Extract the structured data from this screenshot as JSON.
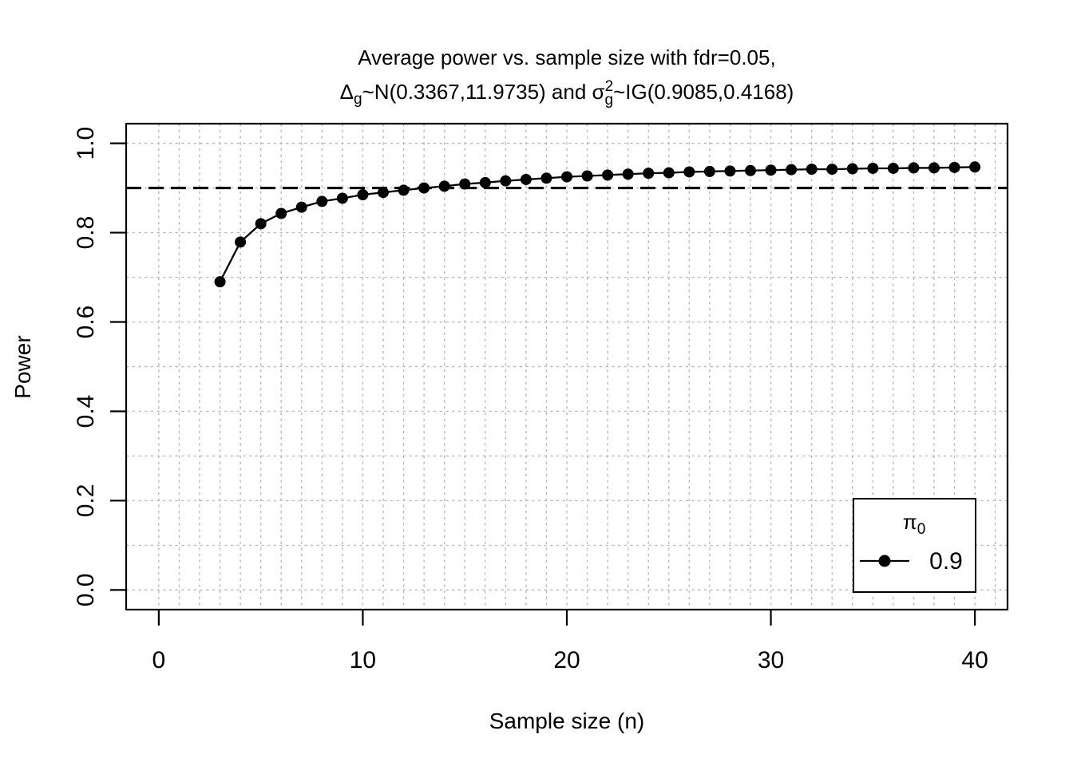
{
  "chart_data": {
    "type": "line",
    "title_line1": "Average power vs. sample size with fdr=0.05,",
    "title_line2_parts": [
      {
        "text": "Δ"
      },
      {
        "sub": "g"
      },
      {
        "text": "~N(0.3367,11.9735) and "
      },
      {
        "text": "σ"
      },
      {
        "stack": {
          "sup": "2",
          "sub": "g"
        }
      },
      {
        "text": "~IG(0.9085,0.4168)"
      }
    ],
    "xlabel": "Sample size (n)",
    "ylabel": "Power",
    "x": [
      3,
      4,
      5,
      6,
      7,
      8,
      9,
      10,
      11,
      12,
      13,
      14,
      15,
      16,
      17,
      18,
      19,
      20,
      21,
      22,
      23,
      24,
      25,
      26,
      27,
      28,
      29,
      30,
      31,
      32,
      33,
      34,
      35,
      36,
      37,
      38,
      39,
      40
    ],
    "series": [
      {
        "name": "0.9",
        "marker": "filled-circle",
        "color": "#000000",
        "values": [
          0.69,
          0.779,
          0.82,
          0.843,
          0.857,
          0.87,
          0.877,
          0.885,
          0.89,
          0.895,
          0.9,
          0.904,
          0.909,
          0.912,
          0.916,
          0.919,
          0.922,
          0.925,
          0.927,
          0.929,
          0.931,
          0.933,
          0.934,
          0.936,
          0.937,
          0.938,
          0.939,
          0.94,
          0.941,
          0.942,
          0.942,
          0.943,
          0.944,
          0.944,
          0.945,
          0.945,
          0.946,
          0.947
        ]
      }
    ],
    "x_ticks": [
      0,
      10,
      20,
      30,
      40
    ],
    "x_tick_labels": [
      "0",
      "10",
      "20",
      "30",
      "40"
    ],
    "y_ticks": [
      0.0,
      0.2,
      0.4,
      0.6,
      0.8,
      1.0
    ],
    "y_tick_labels": [
      "0.0",
      "0.2",
      "0.4",
      "0.6",
      "0.8",
      "1.0"
    ],
    "xlim": [
      -1.6,
      41.6
    ],
    "ylim": [
      -0.044,
      1.044
    ],
    "grid": {
      "on": true,
      "x_from": 0,
      "x_to": 41,
      "x_step": 1,
      "y_from": 0,
      "y_to": 1,
      "y_step": 0.1,
      "color": "#b9b9b9",
      "style": "dashed"
    },
    "reference_line": {
      "y": 0.9,
      "color": "#000000",
      "style": "long-dashed"
    },
    "legend": {
      "position": "bottom-right",
      "title": "π",
      "title_sub": "0",
      "entries": [
        {
          "label": "0.9",
          "symbol": "line-with-filled-circle",
          "color": "#000000"
        }
      ]
    },
    "axis_color": "#000000",
    "background": "#ffffff"
  }
}
